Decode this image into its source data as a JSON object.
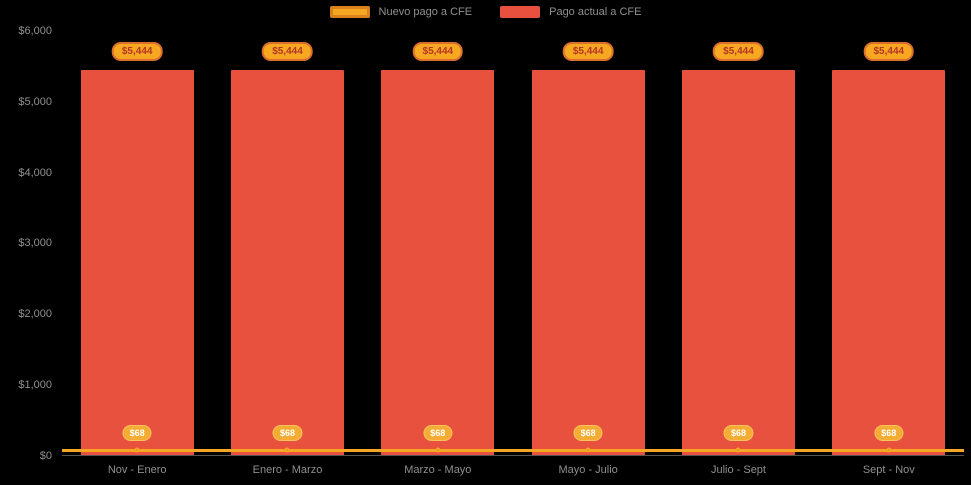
{
  "chart_data": {
    "type": "bar",
    "title": "",
    "categories": [
      "Nov - Enero",
      "Enero - Marzo",
      "Marzo - Mayo",
      "Mayo - Julio",
      "Julio - Sept",
      "Sept - Nov"
    ],
    "series": [
      {
        "name": "Nuevo pago a CFE",
        "render": "line",
        "color": "#F5A623",
        "border_color": "#D9821B",
        "values": [
          68,
          68,
          68,
          68,
          68,
          68
        ],
        "point_labels": [
          "$68",
          "$68",
          "$68",
          "$68",
          "$68",
          "$68"
        ]
      },
      {
        "name": "Pago actual a CFE",
        "render": "bar",
        "color": "#E8513D",
        "values": [
          5444,
          5444,
          5444,
          5444,
          5444,
          5444
        ],
        "point_labels": [
          "$5,444",
          "$5,444",
          "$5,444",
          "$5,444",
          "$5,444",
          "$5,444"
        ]
      }
    ],
    "ylim": [
      0,
      6000
    ],
    "yticks": [
      "$6,000",
      "$5,000",
      "$4,000",
      "$3,000",
      "$2,000",
      "$1,000",
      "$0"
    ],
    "legend_position": "top",
    "grid": false,
    "styles": {
      "background": "#000000",
      "axis_text": "#8f8f8f",
      "baseline": "#555555",
      "bar_badge": {
        "bg": "#F6A821",
        "border": "#DD6F2E",
        "text": "#B63426"
      },
      "line_badge": {
        "bg": "#F4AC33",
        "border": "#F7C35F",
        "text": "#FFFFFF"
      }
    }
  }
}
